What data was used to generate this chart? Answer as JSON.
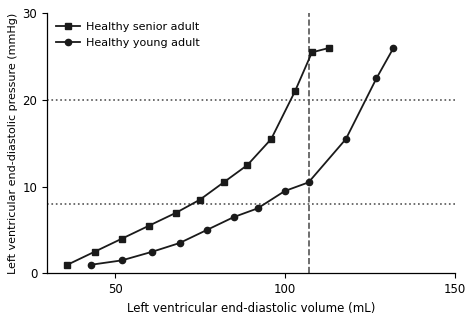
{
  "senior_x": [
    36,
    44,
    52,
    60,
    68,
    75,
    82,
    89,
    96,
    103,
    108,
    113
  ],
  "senior_y": [
    1.0,
    2.5,
    4.0,
    5.5,
    7.0,
    8.5,
    10.5,
    12.5,
    15.5,
    21.0,
    25.5,
    26.0
  ],
  "young_x": [
    43,
    52,
    61,
    69,
    77,
    85,
    92,
    100,
    107,
    118,
    127,
    132
  ],
  "young_y": [
    1.0,
    1.5,
    2.5,
    3.5,
    5.0,
    6.5,
    7.5,
    9.5,
    10.5,
    15.5,
    22.5,
    26.0
  ],
  "hline1": 8.0,
  "hline2": 20.0,
  "vline": 107,
  "xlabel": "Left ventricular end-diastolic volume (mL)",
  "ylabel": "Left ventricular end-diastolic pressure (mmHg)",
  "legend_senior": "Healthy senior adult",
  "legend_young": "Healthy young adult",
  "xlim": [
    30,
    150
  ],
  "ylim": [
    0,
    30
  ],
  "xticks": [
    50,
    100,
    150
  ],
  "yticks": [
    0,
    10,
    20,
    30
  ],
  "line_color": "#1a1a1a",
  "bg_color": "#ffffff",
  "dotted_color": "#555555",
  "dashed_color": "#555555"
}
